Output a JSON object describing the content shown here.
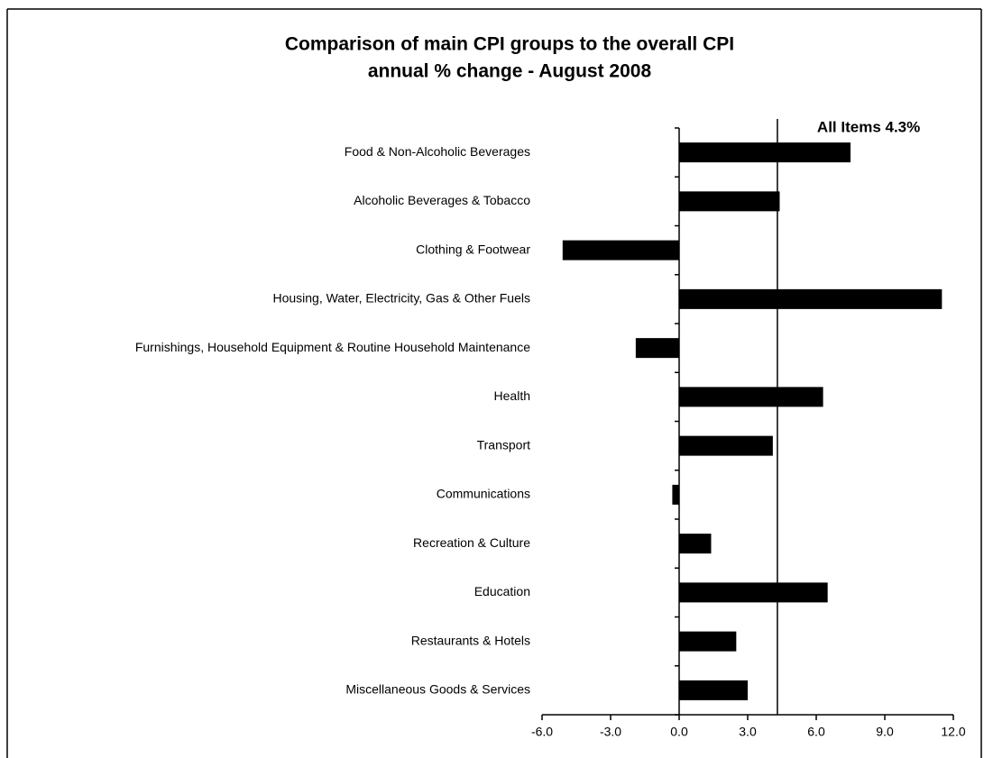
{
  "chart_data": {
    "type": "barh",
    "title": "Comparison of main CPI groups to the overall CPI",
    "subtitle": "annual % change - August 2008",
    "categories": [
      "Food & Non-Alcoholic Beverages",
      "Alcoholic Beverages & Tobacco",
      "Clothing & Footwear",
      "Housing, Water, Electricity, Gas & Other Fuels",
      "Furnishings, Household Equipment & Routine Household Maintenance",
      "Health",
      "Transport",
      "Communications",
      "Recreation & Culture",
      "Education",
      "Restaurants & Hotels",
      "Miscellaneous Goods & Services"
    ],
    "values": [
      7.5,
      4.4,
      -5.1,
      11.5,
      -1.9,
      6.3,
      4.1,
      -0.3,
      1.4,
      6.5,
      2.5,
      3.0
    ],
    "color": "#000000",
    "xlim": [
      -6,
      12
    ],
    "xticks": [
      {
        "value": -6,
        "label": "-6.0"
      },
      {
        "value": -3,
        "label": "-3.0"
      },
      {
        "value": 0,
        "label": "0.0"
      },
      {
        "value": 3,
        "label": "3.0"
      },
      {
        "value": 6,
        "label": "6.0"
      },
      {
        "value": 9,
        "label": "9.0"
      },
      {
        "value": 12,
        "label": "12.0"
      }
    ],
    "reference_line": {
      "value": 4.3,
      "label": "All Items 4.3%"
    }
  }
}
